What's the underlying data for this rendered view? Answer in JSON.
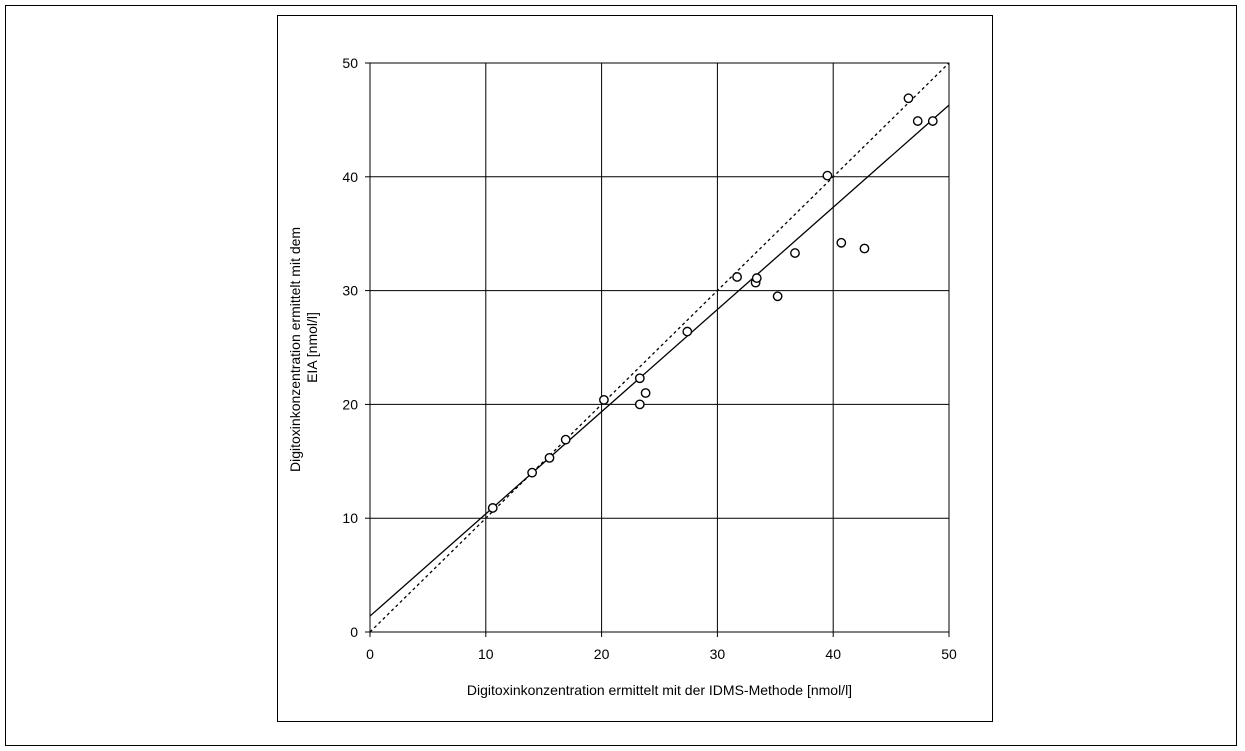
{
  "chart_data": {
    "type": "scatter",
    "title": "",
    "xlabel": "Digitoxinkonzentration ermittelt mit der IDMS-Methode [nmol/l]",
    "ylabel_lines": [
      "Digitoxinkonzentration ermittelt mit dem",
      "EIA [nmol/l]"
    ],
    "xlim": [
      0,
      50
    ],
    "ylim": [
      0,
      50
    ],
    "xticks": [
      "0",
      "10",
      "20",
      "30",
      "40",
      "50"
    ],
    "yticks": [
      "0",
      "10",
      "20",
      "30",
      "40",
      "50"
    ],
    "grid": true,
    "points": [
      [
        10.6,
        10.9
      ],
      [
        14.0,
        14.0
      ],
      [
        15.5,
        15.3
      ],
      [
        16.9,
        16.9
      ],
      [
        20.2,
        20.4
      ],
      [
        23.3,
        22.3
      ],
      [
        23.3,
        20.0
      ],
      [
        23.8,
        21.0
      ],
      [
        27.4,
        26.4
      ],
      [
        31.7,
        31.2
      ],
      [
        33.3,
        30.7
      ],
      [
        33.4,
        31.1
      ],
      [
        35.2,
        29.5
      ],
      [
        36.7,
        33.3
      ],
      [
        39.5,
        40.1
      ],
      [
        40.7,
        34.2
      ],
      [
        42.7,
        33.7
      ],
      [
        46.5,
        46.9
      ],
      [
        47.3,
        44.9
      ],
      [
        48.6,
        44.9
      ]
    ],
    "regression_line": {
      "style": "solid",
      "x": [
        0,
        50
      ],
      "y": [
        1.4,
        46.3
      ]
    },
    "identity_line": {
      "style": "dotted",
      "x": [
        0,
        50
      ],
      "y": [
        0,
        50
      ]
    }
  }
}
